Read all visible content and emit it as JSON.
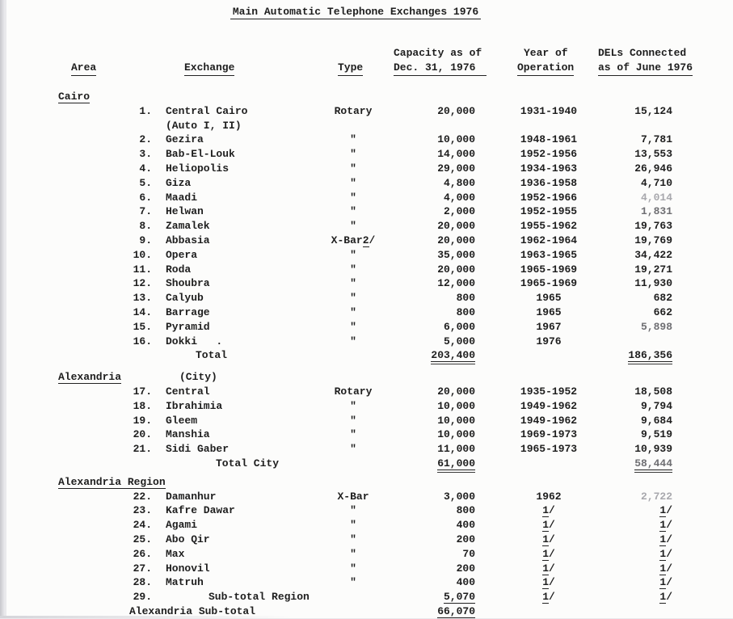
{
  "title": "Main Automatic Telephone Exchanges 1976",
  "header": {
    "area": "Area",
    "exchange": "Exchange",
    "type": "Type",
    "capacity_line1": "Capacity as of",
    "capacity_line2": "Dec. 31, 1976",
    "year_line1": "Year of",
    "year_line2": "Operation",
    "dels_line1": "DELs Connected",
    "dels_line2": "as of June 1976"
  },
  "sections": [
    {
      "area": "Cairo",
      "note": "",
      "rows": [
        {
          "num": "1.",
          "name": "Central Cairo",
          "name2": "(Auto I, II)",
          "type": "Rotary",
          "cap": "20,000",
          "year": "1931-1940",
          "dels": "15,124"
        },
        {
          "num": "2.",
          "name": "Gezira",
          "type": "\"",
          "cap": "10,000",
          "year": "1948-1961",
          "dels": "7,781"
        },
        {
          "num": "3.",
          "name": "Bab-El-Louk",
          "type": "\"",
          "cap": "14,000",
          "year": "1952-1956",
          "dels": "13,553"
        },
        {
          "num": "4.",
          "name": "Heliopolis",
          "type": "\"",
          "cap": "29,000",
          "year": "1934-1963",
          "dels": "26,946"
        },
        {
          "num": "5.",
          "name": "Giza",
          "type": "\"",
          "cap": "4,800",
          "year": "1936-1958",
          "dels": "4,710"
        },
        {
          "num": "6.",
          "name": "Maadi",
          "type": "\"",
          "cap": "4,000",
          "year": "1952-1966",
          "dels": "4,014",
          "dels_class": "faded"
        },
        {
          "num": "7.",
          "name": "Helwan",
          "type": "\"",
          "cap": "2,000",
          "year": "1952-1955",
          "dels": "1,831",
          "dels_class": "dim"
        },
        {
          "num": "8.",
          "name": "Zamalek",
          "type": "\"",
          "cap": "20,000",
          "year": "1955-1962",
          "dels": "19,763"
        },
        {
          "num": "9.",
          "name": "Abbasia",
          "type": "X-Bar",
          "type_fn": "2/",
          "cap": "20,000",
          "year": "1962-1964",
          "dels": "19,769"
        },
        {
          "num": "10.",
          "name": "Opera",
          "type": "\"",
          "cap": "35,000",
          "year": "1963-1965",
          "dels": "34,422"
        },
        {
          "num": "11.",
          "name": "Roda",
          "type": "\"",
          "cap": "20,000",
          "year": "1965-1969",
          "dels": "19,271"
        },
        {
          "num": "12.",
          "name": "Shoubra",
          "type": "\"",
          "cap": "12,000",
          "year": "1965-1969",
          "dels": "11,930"
        },
        {
          "num": "13.",
          "name": "Calyub",
          "type": "\"",
          "cap": "800",
          "year": "1965",
          "dels": "682"
        },
        {
          "num": "14.",
          "name": "Barrage",
          "type": "\"",
          "cap": "800",
          "year": "1965",
          "dels": "662"
        },
        {
          "num": "15.",
          "name": "Pyramid",
          "type": "\"",
          "cap": "6,000",
          "year": "1967",
          "dels": "5,898",
          "dels_class": "dim"
        },
        {
          "num": "16.",
          "name": "Dokki   .",
          "type": "\"",
          "cap": "5,000",
          "year": "1976",
          "dels": ""
        },
        {
          "style": "total",
          "label": "Total",
          "cap": "203,400",
          "cap_u": "uu",
          "dels": "186,356",
          "dels_u": "uu"
        }
      ]
    },
    {
      "area": "Alexandria",
      "note": "(City)",
      "rows": [
        {
          "num": "17.",
          "name": "Central",
          "type": "Rotary",
          "cap": "20,000",
          "year": "1935-1952",
          "dels": "18,508"
        },
        {
          "num": "18.",
          "name": "Ibrahimia",
          "type": "\"",
          "cap": "10,000",
          "year": "1949-1962",
          "dels": "9,794"
        },
        {
          "num": "19.",
          "name": "Gleem",
          "type": "\"",
          "cap": "10,000",
          "year": "1949-1962",
          "dels": "9,684"
        },
        {
          "num": "20.",
          "name": "Manshia",
          "type": "\"",
          "cap": "10,000",
          "year": "1969-1973",
          "dels": "9,519"
        },
        {
          "num": "21.",
          "name": "Sidi Gaber",
          "type": "\"",
          "cap": "11,000",
          "year": "1965-1973",
          "dels": "10,939"
        },
        {
          "style": "total-city",
          "label": "Total City",
          "cap": "61,000",
          "cap_u": "uu",
          "dels": "58,444",
          "dels_u": "uu",
          "dels_class": "dim"
        }
      ]
    },
    {
      "area": "Alexandria Region",
      "note": "",
      "rows": [
        {
          "num": "22.",
          "name": "Damanhur",
          "type": "X-Bar",
          "cap": "3,000",
          "year": "1962",
          "dels": "2,722",
          "dels_class": "faded"
        },
        {
          "num": "23.",
          "name": "Kafre Dawar",
          "type": "\"",
          "cap": "800",
          "year": "1/",
          "year_fn": true,
          "dels": "1/",
          "dels_fn": true
        },
        {
          "num": "24.",
          "name": "Agami",
          "type": "\"",
          "cap": "400",
          "year": "1/",
          "year_fn": true,
          "dels": "1/",
          "dels_fn": true
        },
        {
          "num": "25.",
          "name": "Abo Qir",
          "type": "\"",
          "cap": "200",
          "year": "1/",
          "year_fn": true,
          "dels": "1/",
          "dels_fn": true
        },
        {
          "num": "26.",
          "name": "Max",
          "type": "\"",
          "cap": "70",
          "year": "1/",
          "year_fn": true,
          "dels": "1/",
          "dels_fn": true
        },
        {
          "num": "27.",
          "name": "Honovil",
          "type": "\"",
          "cap": "200",
          "year": "1/",
          "year_fn": true,
          "dels": "1/",
          "dels_fn": true
        },
        {
          "num": "28.",
          "name": "Matruh",
          "type": "\"",
          "cap": "400",
          "year": "1/",
          "year_fn": true,
          "dels": "1/",
          "dels_fn": true
        },
        {
          "style": "subtotal-region",
          "num": "29.",
          "label": "Sub-total Region",
          "cap": "5,070",
          "cap_u": "u",
          "year": "1/",
          "year_fn": true,
          "dels": "1/",
          "dels_fn": true
        },
        {
          "style": "alex-subtotal",
          "label": "Alexandria Sub-total",
          "cap": "66,070",
          "cap_u": "u"
        }
      ]
    }
  ]
}
